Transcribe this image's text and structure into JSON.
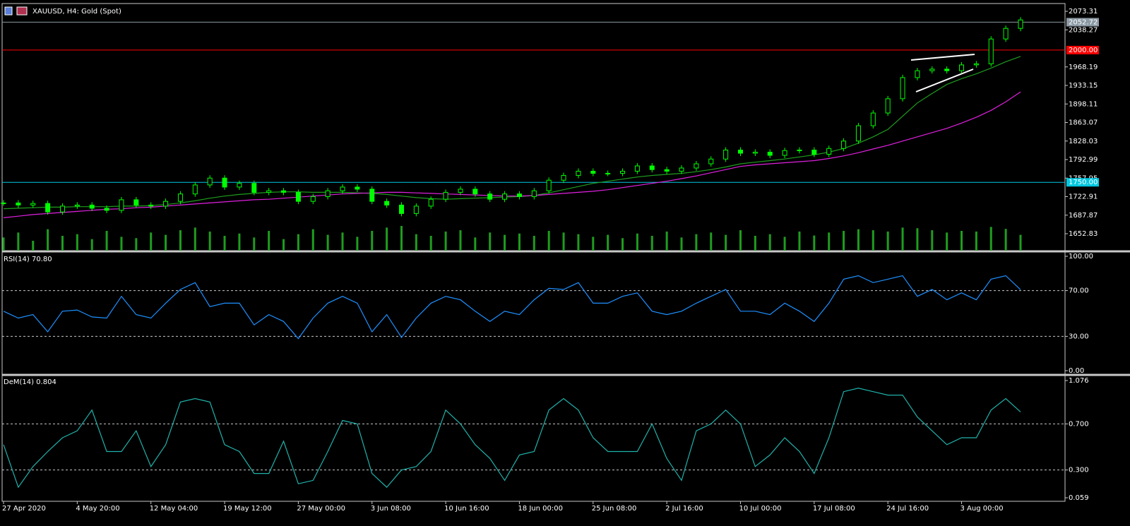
{
  "chart_data": [
    {
      "type": "candlestick",
      "title": "XAUUSD, H4:  Gold (Spot)",
      "color": "#00ff00",
      "categories": [
        "27 Apr 2020",
        null,
        null,
        null,
        null,
        "4 May 20:00",
        null,
        null,
        null,
        null,
        "12 May 04:00",
        null,
        null,
        null,
        null,
        "19 May 12:00",
        null,
        null,
        null,
        null,
        "27 May 00:00",
        null,
        null,
        null,
        null,
        "3 Jun 08:00",
        null,
        null,
        null,
        null,
        "10 Jun 16:00",
        null,
        null,
        null,
        null,
        "18 Jun 00:00",
        null,
        null,
        null,
        null,
        "25 Jun 08:00",
        null,
        null,
        null,
        null,
        "2 Jul 16:00",
        null,
        null,
        null,
        null,
        "10 Jul 00:00",
        null,
        null,
        null,
        null,
        "17 Jul 08:00",
        null,
        null,
        null,
        null,
        "24 Jul 16:00",
        null,
        null,
        null,
        null,
        "3 Aug 00:00",
        null,
        null,
        null,
        null
      ],
      "values": [
        1711,
        1707,
        1710,
        1694,
        1705,
        1707,
        1701,
        1697,
        1717,
        1707,
        1705,
        1714,
        1728,
        1745,
        1758,
        1741,
        1748,
        1731,
        1734,
        1731,
        1714,
        1723,
        1734,
        1741,
        1737,
        1714,
        1707,
        1691,
        1705,
        1718,
        1731,
        1737,
        1728,
        1718,
        1728,
        1723,
        1734,
        1754,
        1763,
        1771,
        1767,
        1767,
        1771,
        1781,
        1774,
        1771,
        1777,
        1785,
        1794,
        1811,
        1805,
        1807,
        1801,
        1810,
        1811,
        1803,
        1814,
        1828,
        1857,
        1881,
        1908,
        1948,
        1961,
        1964,
        1961,
        1972,
        1974,
        2021,
        2041,
        2057
      ],
      "series": [
        {
          "color": "#1f9d1f",
          "values": [
            1700,
            1701,
            1702,
            1703,
            1703,
            1704,
            1704,
            1704,
            1705,
            1705,
            1706,
            1708,
            1711,
            1715,
            1720,
            1724,
            1727,
            1729,
            1731,
            1732,
            1732,
            1731,
            1731,
            1731,
            1730,
            1729,
            1727,
            1724,
            1721,
            1719,
            1718,
            1719,
            1720,
            1721,
            1722,
            1723,
            1725,
            1730,
            1736,
            1742,
            1748,
            1752,
            1756,
            1760,
            1763,
            1765,
            1767,
            1770,
            1774,
            1779,
            1785,
            1788,
            1791,
            1794,
            1798,
            1802,
            1807,
            1814,
            1824,
            1836,
            1850,
            1875,
            1900,
            1918,
            1935,
            1946,
            1955,
            1966,
            1978,
            1988
          ]
        },
        {
          "color": "#e020e0",
          "values": [
            1683,
            1686,
            1689,
            1691,
            1693,
            1695,
            1697,
            1699,
            1700,
            1702,
            1703,
            1705,
            1707,
            1709,
            1711,
            1713,
            1715,
            1717,
            1718,
            1720,
            1722,
            1724,
            1726,
            1728,
            1729,
            1730,
            1731,
            1731,
            1730,
            1729,
            1728,
            1727,
            1726,
            1725,
            1724,
            1724,
            1725,
            1727,
            1729,
            1731,
            1733,
            1736,
            1740,
            1744,
            1748,
            1752,
            1757,
            1762,
            1768,
            1774,
            1780,
            1783,
            1785,
            1787,
            1789,
            1791,
            1795,
            1800,
            1806,
            1813,
            1820,
            1828,
            1836,
            1844,
            1852,
            1862,
            1873,
            1886,
            1902,
            1921
          ]
        }
      ],
      "volume": [
        40,
        55,
        30,
        65,
        45,
        50,
        35,
        60,
        42,
        38,
        55,
        48,
        62,
        70,
        58,
        45,
        52,
        40,
        60,
        35,
        50,
        65,
        48,
        55,
        42,
        60,
        70,
        75,
        50,
        45,
        58,
        62,
        40,
        55,
        48,
        52,
        45,
        60,
        55,
        50,
        42,
        48,
        38,
        52,
        45,
        58,
        40,
        50,
        55,
        48,
        62,
        45,
        50,
        42,
        58,
        46,
        55,
        60,
        65,
        62,
        58,
        70,
        68,
        62,
        55,
        60,
        58,
        72,
        66,
        48
      ],
      "volume_color": "#1f9d1f",
      "levels": [
        {
          "value": 2052.72,
          "color": "#8c9aa5"
        },
        {
          "value": 2000,
          "label": "2000.00",
          "color": "#ff0000"
        },
        {
          "value": 1750,
          "label": "1750.00",
          "color": "#00c8e0"
        }
      ],
      "ylim": [
        1620.8,
        2088
      ],
      "yticks": [
        2073.31,
        2038.27,
        1968.19,
        1933.15,
        1898.11,
        1863.07,
        1828.03,
        1792.99,
        1757.95,
        1722.91,
        1687.87,
        1652.83
      ]
    },
    {
      "type": "line",
      "title": "RSI(14) 70.80",
      "grid": "dotted",
      "series": [
        {
          "color": "#1e90ff",
          "values": [
            52,
            46,
            49,
            34,
            52,
            53,
            47,
            46,
            65,
            49,
            46,
            59,
            71,
            77,
            56,
            59,
            59,
            40,
            49,
            43,
            28,
            46,
            59,
            65,
            59,
            34,
            49,
            29,
            46,
            59,
            65,
            62,
            52,
            43,
            52,
            49,
            62,
            72,
            71,
            77,
            59,
            59,
            65,
            68,
            52,
            49,
            52,
            59,
            65,
            71,
            52,
            52,
            49,
            59,
            52,
            43,
            59,
            80,
            83,
            77,
            80,
            83,
            65,
            71,
            62,
            68,
            62,
            80,
            83,
            70.8
          ]
        }
      ],
      "ylim": [
        0,
        100
      ],
      "yticks": [
        {
          "value": 100,
          "label": "100.00"
        },
        {
          "value": 70,
          "label": "70.00"
        },
        {
          "value": 30,
          "label": "30.00"
        },
        {
          "value": 0,
          "label": "0.00"
        }
      ]
    },
    {
      "type": "line",
      "title": "DeM(14) 0.804",
      "grid": "dotted",
      "series": [
        {
          "color": "#20b2aa",
          "values": [
            0.52,
            0.15,
            0.33,
            0.46,
            0.58,
            0.64,
            0.82,
            0.46,
            0.46,
            0.64,
            0.33,
            0.52,
            0.89,
            0.92,
            0.89,
            0.52,
            0.46,
            0.27,
            0.27,
            0.55,
            0.18,
            0.21,
            0.46,
            0.73,
            0.7,
            0.27,
            0.15,
            0.3,
            0.33,
            0.46,
            0.82,
            0.7,
            0.52,
            0.4,
            0.21,
            0.43,
            0.46,
            0.82,
            0.92,
            0.82,
            0.58,
            0.46,
            0.46,
            0.46,
            0.7,
            0.4,
            0.21,
            0.64,
            0.7,
            0.82,
            0.7,
            0.33,
            0.43,
            0.58,
            0.46,
            0.27,
            0.58,
            0.98,
            1.01,
            0.98,
            0.95,
            0.95,
            0.76,
            0.64,
            0.52,
            0.58,
            0.58,
            0.82,
            0.92,
            0.804
          ]
        }
      ],
      "ylim": [
        0.059,
        1.076
      ],
      "yticks": [
        1.076,
        {
          "value": 0.7,
          "label": "0.700"
        },
        {
          "value": 0.3,
          "label": "0.300"
        },
        0.059
      ]
    }
  ]
}
